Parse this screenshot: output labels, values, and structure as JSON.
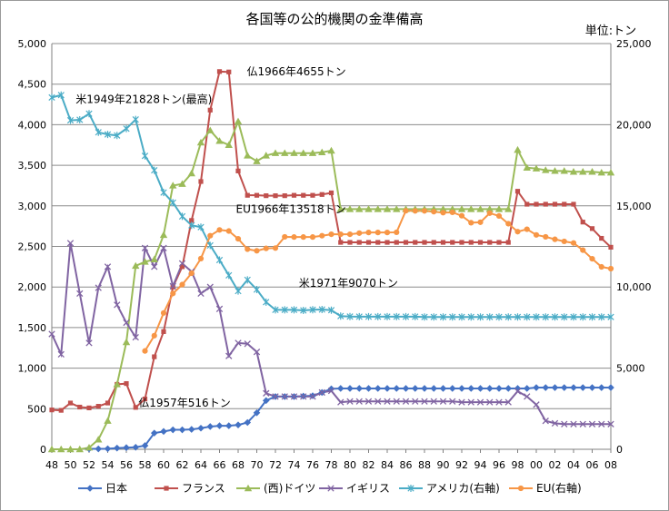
{
  "chart_data": {
    "type": "line",
    "title": "各国等の公的機関の金準備高",
    "unit_label": "単位:トン",
    "left_axis": {
      "ylim": [
        0,
        5000
      ],
      "ticks": [
        "0",
        "500",
        "1,000",
        "1,500",
        "2,000",
        "2,500",
        "3,000",
        "3,500",
        "4,000",
        "4,500",
        "5,000"
      ]
    },
    "right_axis": {
      "ylim": [
        0,
        25000
      ],
      "ticks": [
        "0",
        "5,000",
        "10,000",
        "15,000",
        "20,000",
        "25,000"
      ]
    },
    "x_tick_labels": [
      "48",
      "50",
      "52",
      "54",
      "56",
      "58",
      "60",
      "62",
      "64",
      "66",
      "68",
      "70",
      "72",
      "74",
      "76",
      "78",
      "80",
      "82",
      "84",
      "86",
      "88",
      "90",
      "92",
      "94",
      "96",
      "98",
      "00",
      "02",
      "04",
      "06",
      "08"
    ],
    "x_years": [
      1948,
      1949,
      1950,
      1951,
      1952,
      1953,
      1954,
      1955,
      1956,
      1957,
      1958,
      1959,
      1960,
      1961,
      1962,
      1963,
      1964,
      1965,
      1966,
      1967,
      1968,
      1969,
      1970,
      1971,
      1972,
      1973,
      1974,
      1975,
      1976,
      1977,
      1978,
      1979,
      1980,
      1981,
      1982,
      1983,
      1984,
      1985,
      1986,
      1987,
      1988,
      1989,
      1990,
      1991,
      1992,
      1993,
      1994,
      1995,
      1996,
      1997,
      1998,
      1999,
      2000,
      2001,
      2002,
      2003,
      2004,
      2005,
      2006,
      2007,
      2008
    ],
    "grid": true,
    "legend_position": "bottom",
    "series": [
      {
        "name": "日本",
        "axis": "left",
        "color": "#4472C4",
        "marker": "diamond",
        "values": [
          null,
          null,
          null,
          null,
          5,
          5,
          7,
          15,
          20,
          25,
          45,
          200,
          220,
          240,
          240,
          245,
          260,
          280,
          290,
          290,
          300,
          330,
          450,
          600,
          650,
          650,
          650,
          655,
          660,
          700,
          745,
          750,
          750,
          750,
          750,
          750,
          750,
          750,
          750,
          750,
          750,
          750,
          750,
          750,
          750,
          750,
          750,
          750,
          750,
          750,
          750,
          750,
          760,
          760,
          760,
          760,
          760,
          760,
          760,
          760,
          760
        ]
      },
      {
        "name": "フランス",
        "axis": "left",
        "color": "#C0504D",
        "marker": "square",
        "values": [
          485,
          480,
          570,
          520,
          510,
          530,
          570,
          800,
          810,
          516,
          620,
          1140,
          1450,
          2000,
          2250,
          2820,
          3300,
          4180,
          4655,
          4650,
          3430,
          3130,
          3130,
          3125,
          3125,
          3125,
          3130,
          3130,
          3130,
          3140,
          3160,
          2550,
          2550,
          2550,
          2550,
          2550,
          2550,
          2550,
          2550,
          2550,
          2550,
          2550,
          2550,
          2550,
          2550,
          2550,
          2550,
          2550,
          2550,
          2550,
          3180,
          3020,
          3020,
          3020,
          3020,
          3020,
          3020,
          2800,
          2720,
          2600,
          2490
        ]
      },
      {
        "name": "(西)ドイツ",
        "axis": "left",
        "color": "#9BBB59",
        "marker": "triangle",
        "values": [
          0,
          0,
          0,
          0,
          20,
          120,
          350,
          800,
          1320,
          2260,
          2310,
          2340,
          2640,
          3250,
          3270,
          3400,
          3780,
          3930,
          3800,
          3750,
          4040,
          3620,
          3550,
          3620,
          3650,
          3650,
          3650,
          3650,
          3650,
          3660,
          3680,
          2960,
          2960,
          2960,
          2960,
          2960,
          2960,
          2960,
          2960,
          2960,
          2960,
          2960,
          2960,
          2960,
          2960,
          2960,
          2960,
          2960,
          2960,
          2960,
          3690,
          3470,
          3460,
          3440,
          3430,
          3430,
          3420,
          3420,
          3420,
          3410,
          3410
        ]
      },
      {
        "name": "イギリス",
        "axis": "left",
        "color": "#8064A2",
        "marker": "x",
        "values": [
          1420,
          1170,
          2540,
          1920,
          1310,
          1990,
          2250,
          1780,
          1560,
          1380,
          2480,
          2250,
          2480,
          2010,
          2290,
          2190,
          1920,
          2000,
          1730,
          1150,
          1310,
          1300,
          1200,
          690,
          650,
          650,
          650,
          650,
          650,
          700,
          720,
          580,
          590,
          590,
          590,
          590,
          590,
          590,
          590,
          590,
          590,
          590,
          590,
          590,
          580,
          580,
          580,
          580,
          580,
          580,
          715,
          650,
          550,
          350,
          320,
          310,
          310,
          310,
          310,
          310,
          310
        ]
      },
      {
        "name": "アメリカ(右軸)",
        "axis": "right",
        "color": "#4BACC6",
        "marker": "star",
        "values": [
          21680,
          21828,
          20270,
          20300,
          20680,
          19530,
          19400,
          19340,
          19760,
          20320,
          18080,
          17190,
          15820,
          15200,
          14350,
          13800,
          13690,
          12560,
          11660,
          10720,
          9750,
          10440,
          9840,
          9070,
          8590,
          8590,
          8590,
          8560,
          8600,
          8610,
          8570,
          8210,
          8180,
          8170,
          8170,
          8170,
          8170,
          8170,
          8170,
          8170,
          8150,
          8150,
          8150,
          8150,
          8150,
          8150,
          8150,
          8150,
          8150,
          8150,
          8150,
          8150,
          8150,
          8150,
          8150,
          8150,
          8150,
          8150,
          8150,
          8150,
          8150
        ]
      },
      {
        "name": "EU(右軸)",
        "axis": "right",
        "color": "#F79646",
        "marker": "circle",
        "values": [
          null,
          null,
          null,
          null,
          null,
          null,
          null,
          null,
          null,
          null,
          6060,
          7000,
          8400,
          9600,
          10150,
          10850,
          11750,
          13160,
          13518,
          13450,
          12970,
          12330,
          12230,
          12380,
          12400,
          13090,
          13080,
          13080,
          13080,
          13160,
          13250,
          13250,
          13250,
          13320,
          13360,
          13360,
          13360,
          13370,
          14700,
          14690,
          14690,
          14640,
          14580,
          14600,
          14390,
          13960,
          13990,
          14550,
          14380,
          13900,
          13410,
          13560,
          13210,
          13090,
          12940,
          12810,
          12710,
          12270,
          11740,
          11240,
          11130
        ]
      }
    ],
    "annotations": [
      {
        "text": "米1949年21828トン(最高)",
        "series": "アメリカ(右軸)",
        "year": 1949
      },
      {
        "text": "仏1966年4655トン",
        "series": "フランス",
        "year": 1966
      },
      {
        "text": "EU1966年13518トン",
        "series": "EU(右軸)",
        "year": 1966
      },
      {
        "text": "米1971年9070トン",
        "series": "アメリカ(右軸)",
        "year": 1971
      },
      {
        "text": "仏1957年516トン",
        "series": "フランス",
        "year": 1957
      }
    ]
  }
}
